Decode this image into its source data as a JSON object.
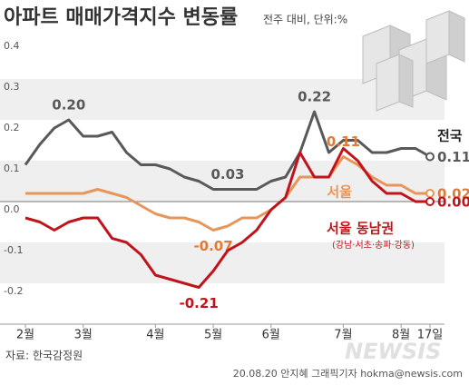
{
  "chart_data": {
    "type": "line",
    "title": "아파트 매매가격지수 변동률",
    "subtitle": "전주 대비, 단위:%",
    "categories": [
      "2월",
      null,
      null,
      null,
      "3월",
      null,
      null,
      null,
      null,
      "4월",
      null,
      null,
      null,
      "5월",
      null,
      null,
      null,
      "6월",
      null,
      null,
      null,
      null,
      "7월",
      null,
      null,
      null,
      "8월",
      null,
      "17일"
    ],
    "series": [
      {
        "name": "전국",
        "color": "#595959",
        "values": [
          0.09,
          0.14,
          0.18,
          0.2,
          0.16,
          0.16,
          0.17,
          0.12,
          0.09,
          0.09,
          0.08,
          0.06,
          0.05,
          0.03,
          0.03,
          0.03,
          0.03,
          0.05,
          0.06,
          0.12,
          0.22,
          0.12,
          0.15,
          0.15,
          0.12,
          0.12,
          0.13,
          0.13,
          0.11
        ],
        "value_labels": [
          null,
          null,
          null,
          "0.20",
          null,
          null,
          null,
          null,
          null,
          null,
          null,
          null,
          null,
          null,
          "0.03",
          null,
          null,
          null,
          null,
          null,
          "0.22",
          null,
          null,
          null,
          null,
          null,
          null,
          null,
          "0.11"
        ]
      },
      {
        "name": "서울",
        "color": "#e8955a",
        "values": [
          0.02,
          0.02,
          0.02,
          0.02,
          0.02,
          0.03,
          0.02,
          0.01,
          -0.01,
          -0.03,
          -0.04,
          -0.04,
          -0.05,
          -0.07,
          -0.06,
          -0.04,
          -0.04,
          -0.02,
          0.01,
          0.06,
          0.06,
          0.06,
          0.11,
          0.09,
          0.06,
          0.04,
          0.04,
          0.02,
          0.02
        ],
        "value_labels": [
          null,
          null,
          null,
          null,
          null,
          null,
          null,
          null,
          null,
          null,
          null,
          null,
          null,
          "-0.07",
          null,
          null,
          null,
          null,
          null,
          null,
          null,
          null,
          "0.11",
          null,
          null,
          null,
          null,
          null,
          "0.02"
        ]
      },
      {
        "name": "서울 동남권",
        "color": "#c0141c",
        "values": [
          -0.04,
          -0.05,
          -0.07,
          -0.05,
          -0.04,
          -0.04,
          -0.09,
          -0.1,
          -0.13,
          -0.18,
          -0.19,
          -0.2,
          -0.21,
          -0.17,
          -0.12,
          -0.1,
          -0.07,
          -0.02,
          0.01,
          0.12,
          0.06,
          0.06,
          0.13,
          0.1,
          0.05,
          0.02,
          0.02,
          0.0,
          0.0
        ],
        "value_labels": [
          null,
          null,
          null,
          null,
          null,
          null,
          null,
          null,
          null,
          null,
          null,
          null,
          "-0.21",
          null,
          null,
          null,
          null,
          null,
          null,
          null,
          null,
          null,
          null,
          null,
          null,
          null,
          null,
          null,
          "0.00"
        ]
      }
    ],
    "annotations": [
      "(강남·서초·송파·강동)"
    ],
    "ylim": [
      -0.3,
      0.4
    ],
    "yticks": [
      -0.2,
      -0.1,
      {
        "value": 0,
        "label": "0.0"
      },
      0.1,
      0.2,
      0.3,
      0.4
    ],
    "source": "자료: 한국감정원",
    "credit": "20.08.20 안지혜 그래픽기자 hokma@newsis.com",
    "watermark": "NEWSIS"
  }
}
